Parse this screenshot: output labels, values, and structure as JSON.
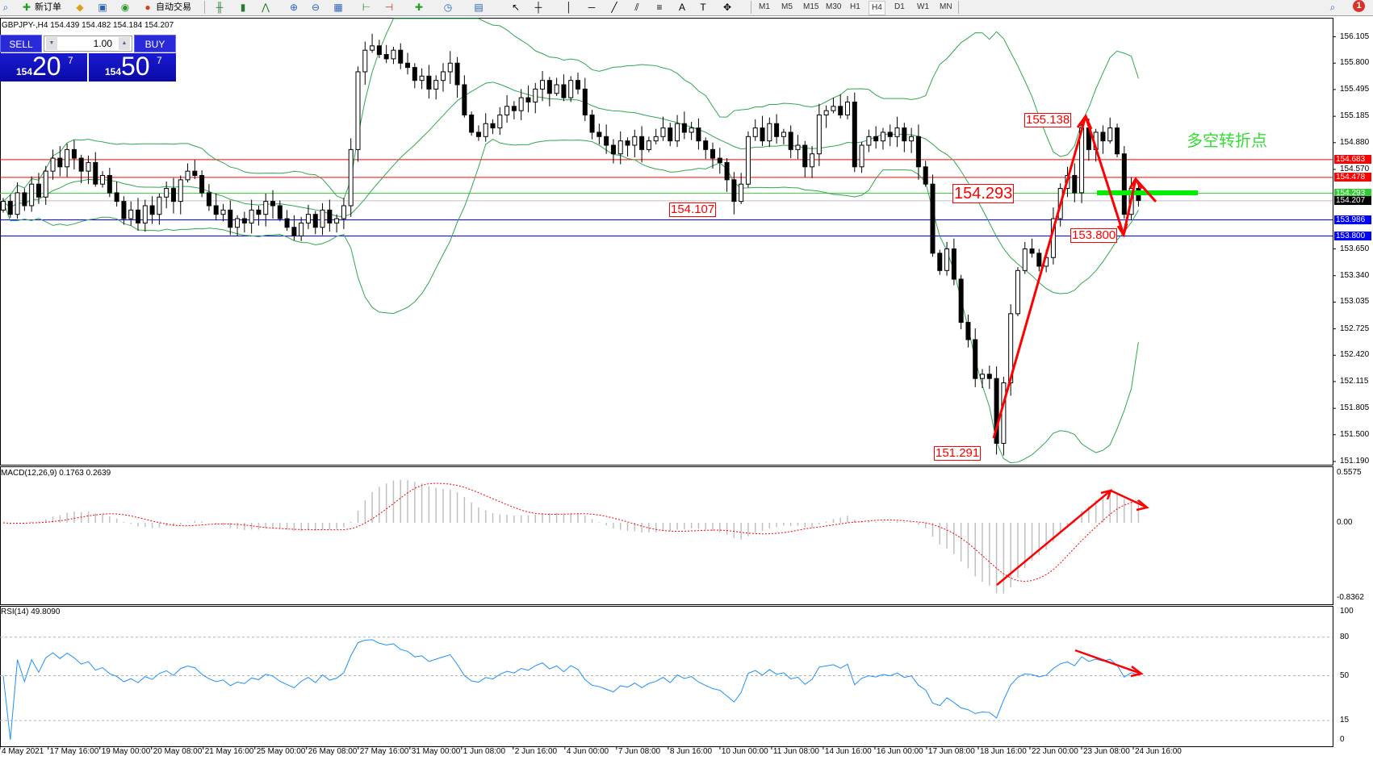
{
  "toolbar": {
    "new_order": "新订单",
    "auto_trading": "自动交易",
    "timeframes": [
      "M1",
      "M5",
      "M15",
      "M30",
      "H1",
      "H4",
      "D1",
      "W1",
      "MN"
    ],
    "active_timeframe": "H4",
    "notification_count": "1"
  },
  "chart_header": "GBPJPY-,H4  154.439 154.482 154.184 154.207",
  "trade_panel": {
    "sell_label": "SELL",
    "buy_label": "BUY",
    "lot": "1.00",
    "sell_big": "154",
    "sell_pips": "20",
    "sell_sup": "7",
    "buy_big": "154",
    "buy_pips": "50",
    "buy_sup": "7"
  },
  "price_axis": [
    "156.105",
    "155.800",
    "155.495",
    "155.185",
    "154.880",
    "154.570",
    "153.650",
    "153.340",
    "153.035",
    "152.725",
    "152.420",
    "152.115",
    "151.805",
    "151.500",
    "151.190"
  ],
  "price_axis_values": [
    156.105,
    155.8,
    155.495,
    155.185,
    154.88,
    154.57,
    153.65,
    153.34,
    153.035,
    152.725,
    152.42,
    152.115,
    151.805,
    151.5,
    151.19
  ],
  "levels": [
    {
      "label": "154.683",
      "price": 154.683,
      "color": "#ff0000"
    },
    {
      "label": "154.478",
      "price": 154.478,
      "color": "#ff0000"
    },
    {
      "label": "154.293",
      "price": 154.293,
      "color": "#33cc33"
    },
    {
      "label": "154.207",
      "price": 154.207,
      "color": "#000000",
      "line": "#c0c0c0"
    },
    {
      "label": "153.986",
      "price": 153.986,
      "color": "#0000ff"
    },
    {
      "label": "153.800",
      "price": 153.8,
      "color": "#0000ff"
    }
  ],
  "annotations": {
    "high": "155.138",
    "pivot": "154.293",
    "support": "154.107",
    "low2": "153.800",
    "low": "151.291",
    "note": "多空转折点",
    "note_color": "#33dd33",
    "arrow_color": "#ff0000"
  },
  "macd": {
    "label": "MACD(12,26,9) 0.1763 0.2639",
    "axis": [
      "0.5575",
      "0.00",
      "-0.8362"
    ],
    "range": [
      -0.8362,
      0.5575
    ]
  },
  "rsi": {
    "label": "RSI(14) 49.8090",
    "axis": [
      "100",
      "80",
      "50",
      "15",
      "0"
    ],
    "levels": [
      80,
      50,
      15
    ]
  },
  "time_axis": [
    "4 May 2021",
    "17 May 16:00",
    "19 May 00:00",
    "20 May 08:00",
    "21 May 16:00",
    "25 May 00:00",
    "26 May 08:00",
    "27 May 16:00",
    "31 May 00:00",
    "1 Jun 08:00",
    "2 Jun 16:00",
    "4 Jun 00:00",
    "7 Jun 08:00",
    "8 Jun 16:00",
    "10 Jun 00:00",
    "11 Jun 08:00",
    "14 Jun 16:00",
    "16 Jun 00:00",
    "17 Jun 08:00",
    "18 Jun 16:00",
    "22 Jun 00:00",
    "23 Jun 08:00",
    "24 Jun 16:00"
  ],
  "chart_data": {
    "type": "candlestick",
    "symbol": "GBPJPY-",
    "timeframe": "H4",
    "ylim": [
      151.19,
      156.105
    ],
    "indicators": [
      "Bollinger Bands(20,2)",
      "MACD(12,26,9)",
      "RSI(14)"
    ],
    "colors": {
      "bollinger": "#2fa84f",
      "macd_hist": "#c0c0c0",
      "macd_signal": "#ff0000",
      "rsi": "#1e90ff"
    },
    "closes": [
      154.2,
      154.05,
      154.3,
      154.15,
      154.4,
      154.25,
      154.55,
      154.7,
      154.6,
      154.8,
      154.7,
      154.55,
      154.65,
      154.4,
      154.5,
      154.3,
      154.2,
      154.0,
      154.1,
      153.95,
      154.15,
      154.05,
      154.25,
      154.35,
      154.2,
      154.45,
      154.55,
      154.5,
      154.3,
      154.15,
      154.05,
      154.1,
      153.9,
      154.0,
      153.95,
      154.1,
      154.05,
      154.2,
      154.15,
      154.0,
      153.9,
      153.8,
      153.95,
      154.05,
      153.9,
      154.1,
      153.95,
      154.0,
      154.15,
      154.8,
      155.7,
      155.95,
      156.0,
      155.9,
      155.85,
      155.95,
      155.8,
      155.75,
      155.6,
      155.65,
      155.5,
      155.6,
      155.7,
      155.8,
      155.55,
      155.2,
      155.0,
      154.95,
      155.1,
      155.05,
      155.2,
      155.3,
      155.25,
      155.4,
      155.35,
      155.5,
      155.6,
      155.45,
      155.55,
      155.4,
      155.6,
      155.5,
      155.2,
      155.0,
      154.95,
      154.85,
      154.75,
      154.9,
      154.85,
      154.95,
      154.8,
      154.9,
      154.95,
      155.05,
      154.9,
      155.1,
      155.0,
      155.05,
      154.9,
      154.8,
      154.7,
      154.65,
      154.45,
      154.2,
      154.4,
      154.95,
      155.05,
      154.9,
      155.1,
      154.95,
      155.0,
      154.8,
      154.85,
      154.6,
      154.75,
      155.2,
      155.25,
      155.3,
      155.2,
      155.35,
      154.6,
      154.85,
      154.95,
      154.9,
      155.0,
      154.95,
      155.05,
      154.9,
      154.95,
      154.6,
      154.4,
      153.6,
      153.4,
      153.65,
      153.3,
      152.8,
      152.6,
      152.15,
      152.2,
      152.15,
      151.4,
      152.1,
      152.9,
      153.4,
      153.65,
      153.6,
      153.45,
      153.55,
      154.0,
      154.35,
      154.5,
      154.3,
      155.05,
      154.8,
      155.0,
      154.9,
      155.05,
      154.75,
      154.05,
      154.35,
      154.21
    ]
  }
}
